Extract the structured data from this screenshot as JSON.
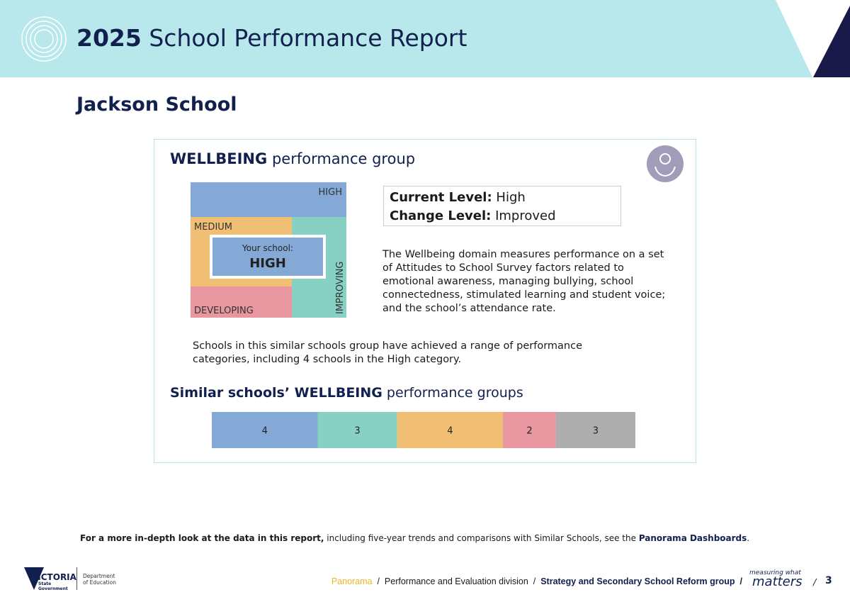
{
  "header": {
    "year": "2025",
    "title": "School Performance Report"
  },
  "school_name": "Jackson School",
  "panel": {
    "title_bold": "WELLBEING",
    "title_rest": "performance group",
    "matrix": {
      "high": "HIGH",
      "medium": "MEDIUM",
      "developing": "DEVELOPING",
      "improving": "IMPROVING",
      "your_school": "Your school:",
      "your_level": "HIGH"
    },
    "current_level_label": "Current Level:",
    "current_level": "High",
    "change_level_label": "Change Level:",
    "change_level": "Improved",
    "description": "The Wellbeing domain measures performance on a set of Attitudes to School Survey factors related to emotional awareness, managing bullying, school connectedness, stimulated learning and student voice; and the school’s attendance rate.",
    "similar_text": "Schools in this similar schools group have achieved a range of performance categories, including 4 schools in the High category.",
    "similar_title_bold": "Similar schools’ WELLBEING",
    "similar_title_rest": "performance groups",
    "similar_groups": [
      {
        "value": 4,
        "color": "#85a9d6"
      },
      {
        "value": 3,
        "color": "#86d1c3"
      },
      {
        "value": 4,
        "color": "#f1bf73"
      },
      {
        "value": 2,
        "color": "#e8969f"
      },
      {
        "value": 3,
        "color": "#adadad"
      }
    ]
  },
  "footer": {
    "note_bold": "For a more in-depth look at the data in this report,",
    "note_text": "including five-year trends and comparisons with Similar Schools, see the",
    "note_link": "Panorama Dashboards",
    "note_end": ".",
    "logo": {
      "victoria": "VICTORIA",
      "state": "State",
      "government": "Government",
      "department": "Department",
      "of_education": "of Education"
    },
    "breadcrumb": [
      "Panorama",
      "Performance and Evaluation division",
      "Strategy and Secondary School Reform group"
    ],
    "separator": "/",
    "measuring": "measuring what",
    "matters": "matters",
    "page": "3"
  }
}
